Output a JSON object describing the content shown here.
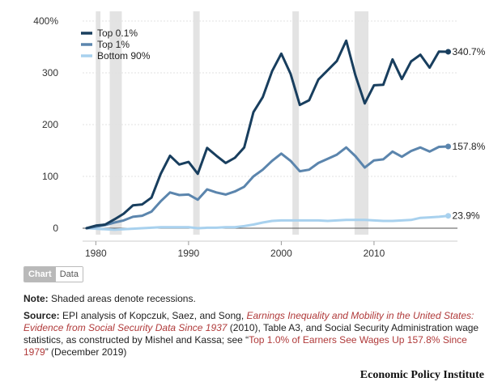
{
  "chart_data": {
    "type": "line",
    "title": "",
    "xlabel": "",
    "ylabel": "",
    "xlim": [
      1977,
      2019
    ],
    "ylim": [
      -5,
      400
    ],
    "y_ticks": [
      0,
      100,
      200,
      300,
      400
    ],
    "y_tick_labels": [
      "0",
      "100",
      "200",
      "300",
      "400%"
    ],
    "x_ticks": [
      1980,
      1990,
      2000,
      2010
    ],
    "x_tick_labels": [
      "1980",
      "1990",
      "2000",
      "2010"
    ],
    "recessions": [
      [
        1980.0,
        1980.5
      ],
      [
        1981.5,
        1982.8
      ],
      [
        1990.5,
        1991.2
      ],
      [
        2001.2,
        2001.9
      ],
      [
        2007.9,
        2009.4
      ]
    ],
    "legend_position": "top-left",
    "series": [
      {
        "name": "Top 0.1%",
        "color": "#183e5e",
        "end_label": "340.7%",
        "x": [
          1979,
          1980,
          1981,
          1982,
          1983,
          1984,
          1985,
          1986,
          1987,
          1988,
          1989,
          1990,
          1991,
          1992,
          1993,
          1994,
          1995,
          1996,
          1997,
          1998,
          1999,
          2000,
          2001,
          2002,
          2003,
          2004,
          2005,
          2006,
          2007,
          2008,
          2009,
          2010,
          2011,
          2012,
          2013,
          2014,
          2015,
          2016,
          2017,
          2018
        ],
        "values": [
          0,
          5,
          7,
          17,
          28,
          44,
          46,
          59,
          105,
          140,
          123,
          128,
          105,
          155,
          140,
          126,
          136,
          156,
          224,
          253,
          303,
          337,
          298,
          238,
          247,
          287,
          305,
          323,
          362,
          295,
          241,
          276,
          277,
          326,
          288,
          322,
          335,
          310,
          341,
          340.7
        ]
      },
      {
        "name": "Top 1%",
        "color": "#5b85ad",
        "end_label": "157.8%",
        "x": [
          1979,
          1980,
          1981,
          1982,
          1983,
          1984,
          1985,
          1986,
          1987,
          1988,
          1989,
          1990,
          1991,
          1992,
          1993,
          1994,
          1995,
          1996,
          1997,
          1998,
          1999,
          2000,
          2001,
          2002,
          2003,
          2004,
          2005,
          2006,
          2007,
          2008,
          2009,
          2010,
          2011,
          2012,
          2013,
          2014,
          2015,
          2016,
          2017,
          2018
        ],
        "values": [
          0,
          3,
          6,
          11,
          15,
          22,
          24,
          32,
          52,
          69,
          64,
          65,
          55,
          75,
          69,
          65,
          71,
          80,
          100,
          113,
          130,
          144,
          130,
          110,
          113,
          126,
          134,
          142,
          156,
          139,
          117,
          131,
          133,
          148,
          138,
          149,
          156,
          148,
          157,
          157.8
        ]
      },
      {
        "name": "Bottom 90%",
        "color": "#a8d1ee",
        "end_label": "23.9%",
        "x": [
          1979,
          1980,
          1981,
          1982,
          1983,
          1984,
          1985,
          1986,
          1987,
          1988,
          1989,
          1990,
          1991,
          1992,
          1993,
          1994,
          1995,
          1996,
          1997,
          1998,
          1999,
          2000,
          2001,
          2002,
          2003,
          2004,
          2005,
          2006,
          2007,
          2008,
          2009,
          2010,
          2011,
          2012,
          2013,
          2014,
          2015,
          2016,
          2017,
          2018
        ],
        "values": [
          0,
          -1,
          -2,
          -3,
          -2,
          -1,
          0,
          1,
          2,
          2,
          2,
          2,
          0,
          1,
          1,
          2,
          2,
          4,
          7,
          11,
          14,
          15,
          15,
          15,
          15,
          15,
          14,
          15,
          16,
          16,
          16,
          15,
          14,
          14,
          15,
          16,
          20,
          21,
          22,
          23.9
        ]
      }
    ]
  },
  "controls": {
    "chart_tab": "Chart",
    "data_tab": "Data"
  },
  "notes": {
    "note_label": "Note:",
    "note_text": " Shaded areas denote recessions.",
    "source_label": "Source:",
    "source_text_1": " EPI analysis of Kopczuk, Saez, and Song, ",
    "source_title": "Earnings Inequality and Mobility in the United States: Evidence from Social Security Data Since 1937",
    "source_text_2": " (2010), Table A3, and Social Security Administration wage statistics, as constructed by Mishel and Kassa; see “",
    "source_link": "Top 1.0% of Earners See Wages Up 157.8% Since 1979",
    "source_text_3": "” (December 2019)"
  },
  "brand": "Economic Policy Institute"
}
